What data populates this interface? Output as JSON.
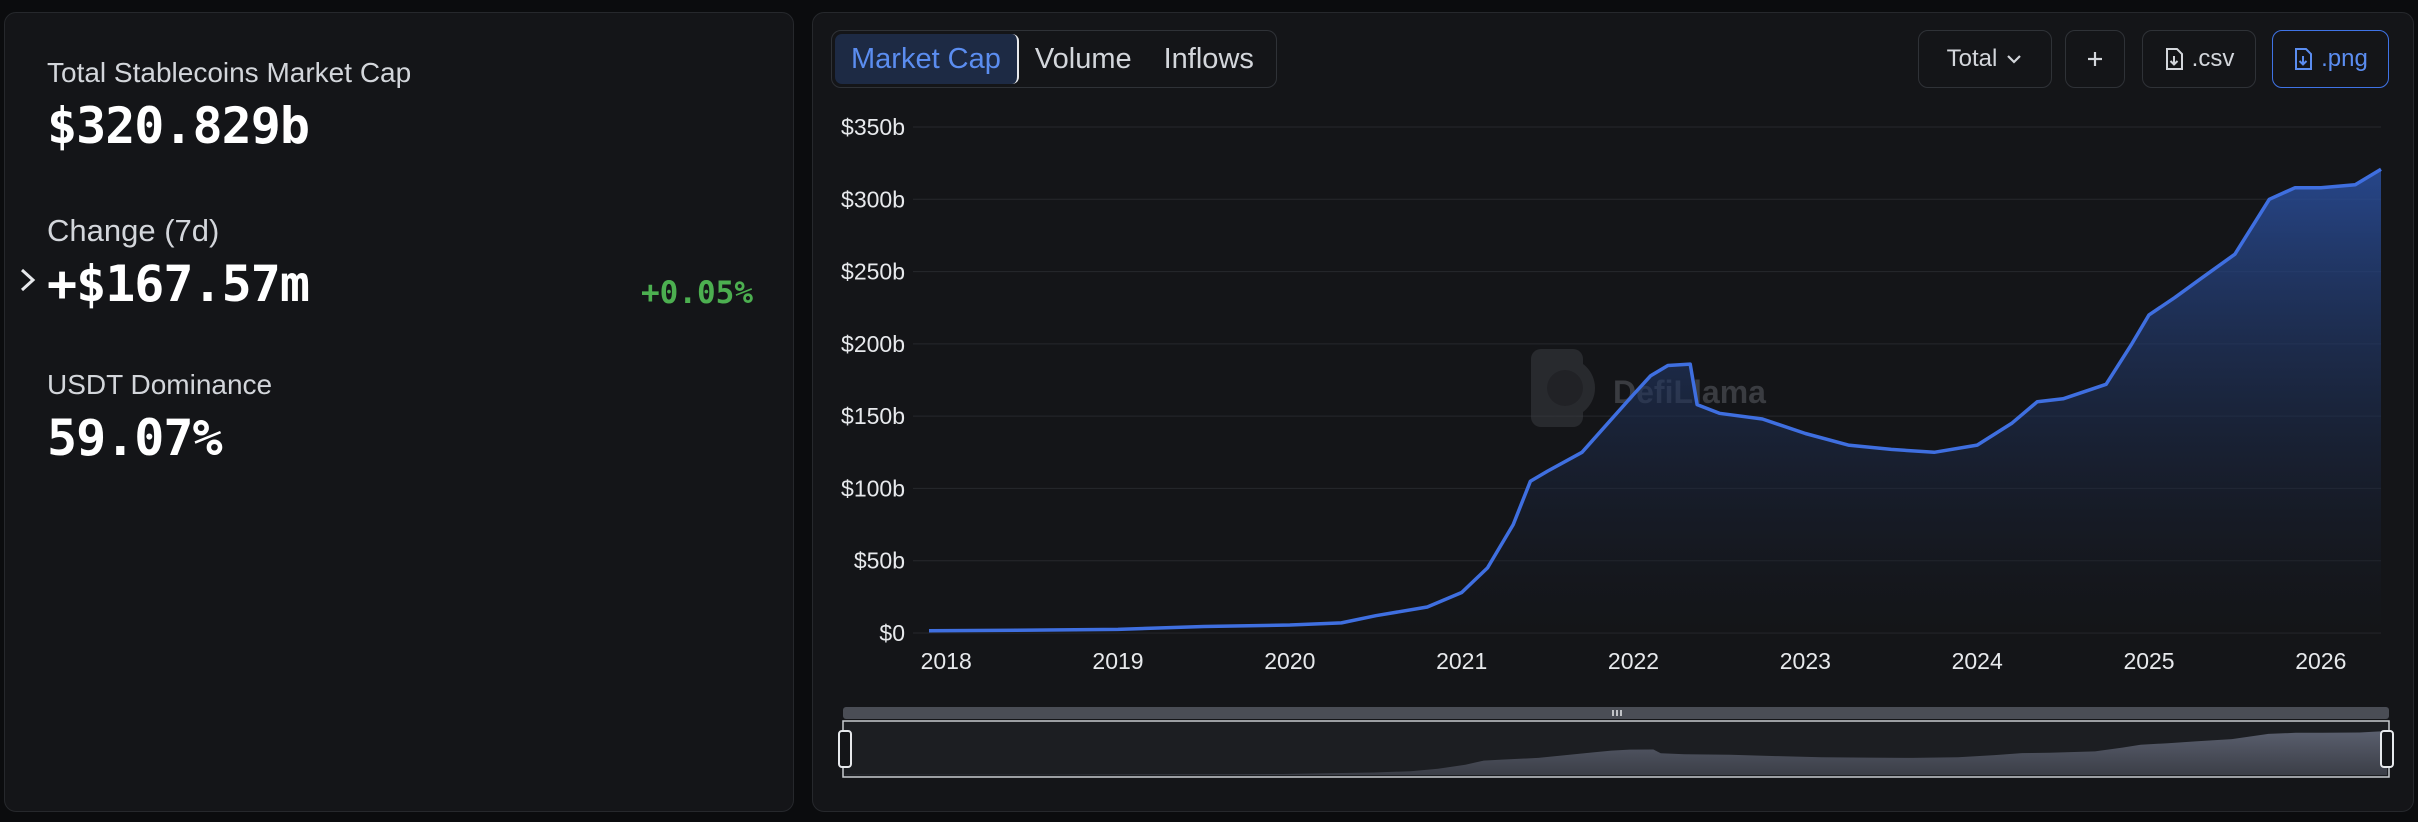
{
  "summary": {
    "market_cap_label": "Total Stablecoins Market Cap",
    "market_cap_value": "$320.829b",
    "change_label": "Change (7d)",
    "change_value": "+$167.57m",
    "change_pct": "+0.05%",
    "dominance_label": "USDT Dominance",
    "dominance_value": "59.07%"
  },
  "tabs": [
    "Market Cap",
    "Volume",
    "Inflows"
  ],
  "active_tab": "Market Cap",
  "controls": {
    "total_label": "Total",
    "csv_label": ".csv",
    "png_label": ".png"
  },
  "watermark": "DefiLlama",
  "colors": {
    "accent": "#3f73e6",
    "positive": "#4caf50",
    "panel": "#141518"
  },
  "chart_data": {
    "type": "area",
    "title": "",
    "ylabel": "",
    "xlabel": "",
    "ylim": [
      0,
      350
    ],
    "y_unit": "b",
    "yticks": [
      "$0",
      "$50b",
      "$100b",
      "$150b",
      "$200b",
      "$250b",
      "$300b",
      "$350b"
    ],
    "xticks": [
      "2018",
      "2019",
      "2020",
      "2021",
      "2022",
      "2023",
      "2024",
      "2025",
      "2026"
    ],
    "grid": true,
    "series": [
      {
        "values_in": "billions USD",
        "x": [
          2017.9,
          2018.5,
          2019.0,
          2019.5,
          2020.0,
          2020.3,
          2020.5,
          2020.8,
          2021.0,
          2021.15,
          2021.3,
          2021.4,
          2021.5,
          2021.7,
          2021.85,
          2022.0,
          2022.1,
          2022.2,
          2022.33,
          2022.37,
          2022.5,
          2022.75,
          2023.0,
          2023.25,
          2023.5,
          2023.75,
          2024.0,
          2024.2,
          2024.35,
          2024.5,
          2024.75,
          2024.9,
          2025.0,
          2025.15,
          2025.3,
          2025.5,
          2025.7,
          2025.85,
          2026.0,
          2026.2,
          2026.35
        ],
        "y": [
          1.5,
          2,
          2.5,
          4.5,
          5.5,
          7,
          12,
          18,
          28,
          45,
          75,
          105,
          112,
          125,
          145,
          165,
          178,
          185,
          186,
          158,
          152,
          148,
          138,
          130,
          127,
          125,
          130,
          145,
          160,
          162,
          172,
          200,
          220,
          232,
          245,
          262,
          300,
          308,
          308,
          310,
          320.8
        ]
      }
    ]
  }
}
